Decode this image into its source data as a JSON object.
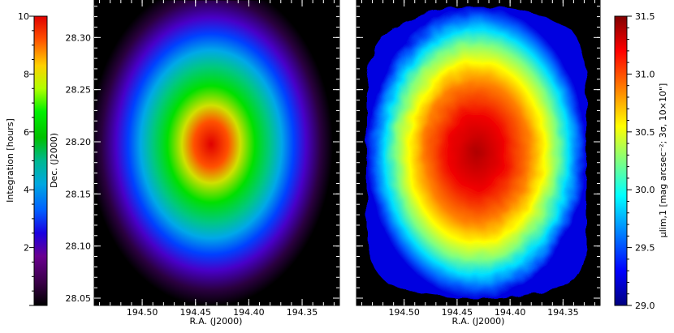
{
  "chart_data": [
    {
      "type": "heatmap",
      "panel": "left",
      "xlabel": "R.A. (J2000)",
      "ylabel": "Dec. (J2000)",
      "xlim": [
        194.545,
        194.315
      ],
      "ylim": [
        28.043,
        28.336
      ],
      "xticks": [
        194.5,
        194.45,
        194.4,
        194.35
      ],
      "yticks": [
        28.05,
        28.1,
        28.15,
        28.2,
        28.25,
        28.3
      ],
      "center": {
        "ra": 194.425,
        "dec": 28.195
      },
      "colorbar": {
        "label": "Integration [hours]",
        "range": [
          0,
          10
        ],
        "ticks": [
          2,
          4,
          6,
          8,
          10
        ],
        "colormap": "nipy_spectral",
        "placement": "left"
      }
    },
    {
      "type": "heatmap",
      "panel": "right",
      "xlabel": "R.A. (J2000)",
      "ylabel": "",
      "xlim": [
        194.545,
        194.315
      ],
      "ylim": [
        28.043,
        28.336
      ],
      "xticks": [
        194.5,
        194.45,
        194.4,
        194.35
      ],
      "center": {
        "ra": 194.425,
        "dec": 28.195
      },
      "colorbar": {
        "label": "μlim,1 [mag arcsec⁻²; 3σ, 10×10\"]",
        "range": [
          29.0,
          31.5
        ],
        "ticks": [
          29.0,
          29.5,
          30.0,
          30.5,
          31.0,
          31.5
        ],
        "colormap": "jet",
        "placement": "right"
      }
    }
  ]
}
